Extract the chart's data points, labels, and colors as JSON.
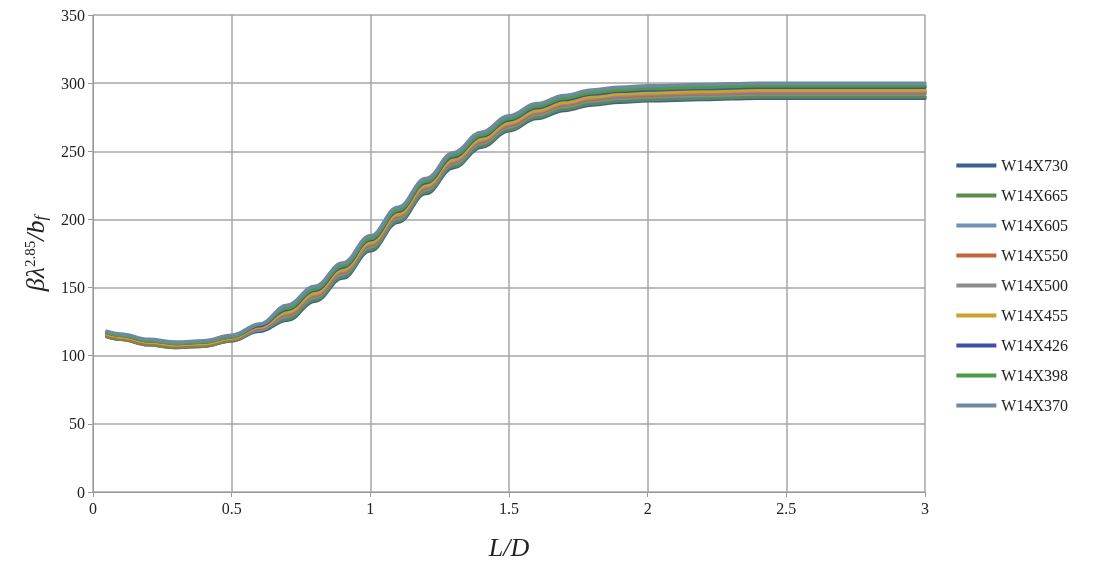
{
  "chart_data": {
    "type": "line",
    "xlabel": "L/D",
    "ylabel": "βλ$^{2.85}$/b$_{f}$",
    "x": [
      0.05,
      0.1,
      0.2,
      0.3,
      0.4,
      0.5,
      0.6,
      0.7,
      0.8,
      0.9,
      1.0,
      1.1,
      1.2,
      1.3,
      1.4,
      1.5,
      1.6,
      1.7,
      1.8,
      1.9,
      2.0,
      2.2,
      2.4,
      2.6,
      2.8,
      3.0
    ],
    "series": [
      {
        "name": "W14X730",
        "color": "#3a5f95",
        "values": [
          114,
          112,
          108,
          106,
          107,
          111,
          118,
          126,
          140,
          157,
          177,
          198,
          219,
          238,
          253,
          265,
          274,
          280,
          284,
          286,
          287,
          288,
          289,
          289,
          289,
          289
        ]
      },
      {
        "name": "W14X665",
        "color": "#5e8a4e",
        "values": [
          114,
          112,
          108,
          106,
          107,
          111,
          119,
          127,
          141,
          158,
          178,
          199,
          220,
          239,
          254,
          266,
          275,
          281,
          285,
          287,
          288,
          289,
          290,
          290,
          290,
          290
        ]
      },
      {
        "name": "W14X605",
        "color": "#6f93b8",
        "values": [
          115,
          113,
          109,
          107,
          108,
          112,
          119,
          129,
          143,
          160,
          180,
          201,
          222,
          241,
          256,
          268,
          277,
          283,
          287,
          289,
          290,
          291,
          292,
          292,
          292,
          292
        ]
      },
      {
        "name": "W14X550",
        "color": "#c0683a",
        "values": [
          115,
          113,
          109,
          107,
          108,
          112,
          120,
          130,
          144,
          161,
          181,
          202,
          223,
          242,
          257,
          269,
          278,
          284,
          288,
          290,
          291,
          292,
          293,
          293,
          293,
          293
        ]
      },
      {
        "name": "W14X500",
        "color": "#8c8c8c",
        "values": [
          116,
          114,
          110,
          108,
          109,
          113,
          121,
          131,
          145,
          162,
          182,
          203,
          224,
          243,
          258,
          270,
          279,
          285,
          289,
          291,
          292,
          293,
          294,
          294,
          294,
          294
        ]
      },
      {
        "name": "W14X455",
        "color": "#c9a227",
        "values": [
          116,
          114,
          110,
          108,
          109,
          113,
          121,
          132,
          146,
          163,
          183,
          204,
          225,
          244,
          259,
          271,
          280,
          286,
          290,
          292,
          293,
          294,
          295,
          295,
          295,
          295
        ]
      },
      {
        "name": "W14X426",
        "color": "#3f51a6",
        "values": [
          117,
          115,
          111,
          109,
          110,
          114,
          122,
          134,
          148,
          165,
          185,
          206,
          227,
          246,
          261,
          273,
          282,
          288,
          292,
          294,
          295,
          296,
          297,
          297,
          297,
          297
        ]
      },
      {
        "name": "W14X398",
        "color": "#4e9a48",
        "values": [
          117,
          115,
          111,
          109,
          110,
          114,
          123,
          135,
          149,
          166,
          186,
          207,
          228,
          247,
          262,
          274,
          283,
          289,
          293,
          295,
          296,
          297,
          298,
          298,
          298,
          298
        ]
      },
      {
        "name": "W14X370",
        "color": "#6e8aa0",
        "values": [
          118,
          116,
          112,
          110,
          111,
          115,
          123,
          137,
          151,
          168,
          188,
          209,
          230,
          249,
          264,
          276,
          285,
          291,
          295,
          297,
          298,
          299,
          300,
          300,
          300,
          300
        ]
      }
    ],
    "xlim": [
      0,
      3
    ],
    "xticks": [
      0,
      0.5,
      1,
      1.5,
      2,
      2.5,
      3
    ],
    "ylim": [
      0,
      350
    ],
    "yticks": [
      0,
      50,
      100,
      150,
      200,
      250,
      300,
      350
    ],
    "grid": true,
    "legend": "right",
    "marker": "none",
    "line_style": "solid"
  }
}
